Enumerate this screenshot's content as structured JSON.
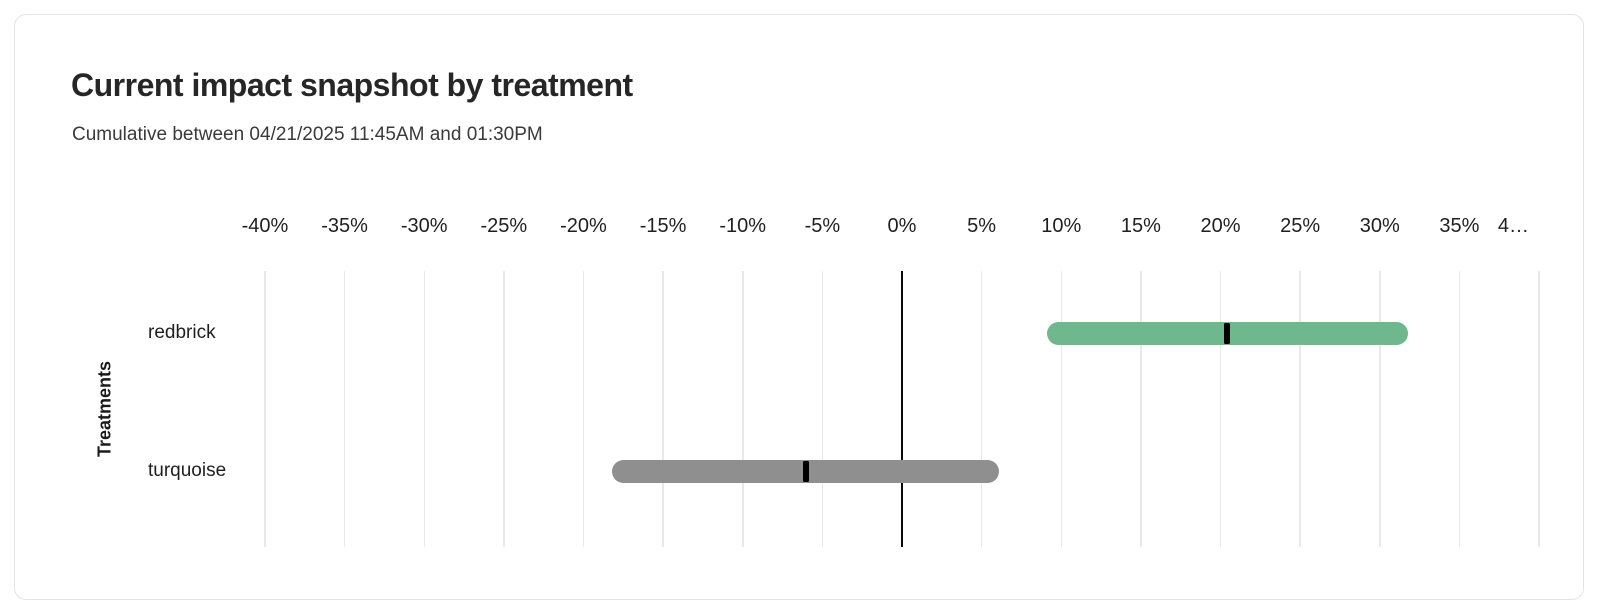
{
  "card": {
    "title": "Current impact snapshot by treatment",
    "subtitle": "Cumulative between 04/21/2025 11:45AM and 01:30PM"
  },
  "chart_data": {
    "type": "bar",
    "subtype": "horizontal-range-bar-with-point-marker",
    "title": "Current impact snapshot by treatment",
    "subtitle": "Cumulative between 04/21/2025 11:45AM and 01:30PM",
    "xlabel": "",
    "ylabel": "Treatments",
    "x_unit": "%",
    "xlim": [
      -40,
      40
    ],
    "x_tick_step": 5,
    "x_tick_values": [
      -40,
      -35,
      -30,
      -25,
      -20,
      -15,
      -10,
      -5,
      0,
      5,
      10,
      15,
      20,
      25,
      30,
      35,
      40
    ],
    "x_tick_labels": [
      "-40%",
      "-35%",
      "-30%",
      "-25%",
      "-20%",
      "-15%",
      "-10%",
      "-5%",
      "0%",
      "5%",
      "10%",
      "15%",
      "20%",
      "25%",
      "30%",
      "35%",
      "4…"
    ],
    "grid": true,
    "zero_line": 0,
    "categories": [
      "redbrick",
      "turquoise"
    ],
    "series": [
      {
        "name": "redbrick",
        "low": 9.1,
        "value": 20.4,
        "high": 31.8,
        "color": "#6fb78c"
      },
      {
        "name": "turquoise",
        "low": -18.2,
        "value": -6.0,
        "high": 6.1,
        "color": "#8f8f8f"
      }
    ],
    "marker_color": "#000000",
    "legend": "none"
  }
}
